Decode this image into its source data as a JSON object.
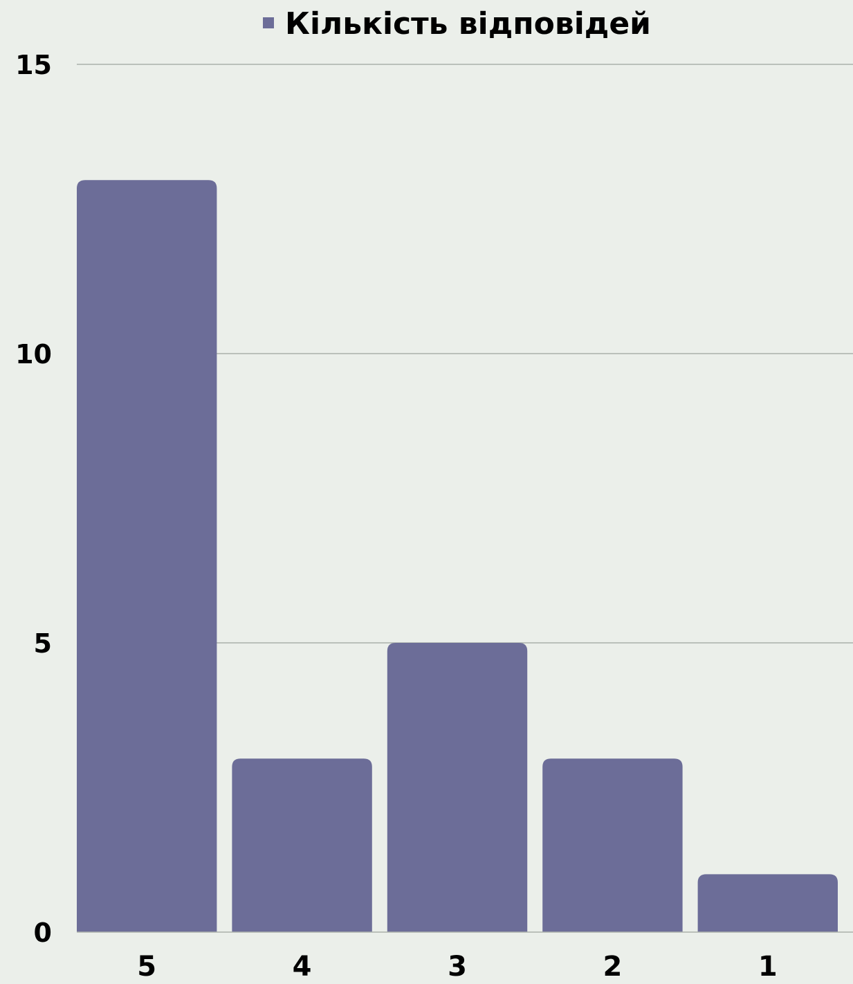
{
  "chart_data": {
    "type": "bar",
    "title": "",
    "xlabel": "",
    "ylabel": "",
    "categories": [
      "5",
      "4",
      "3",
      "2",
      "1"
    ],
    "series": [
      {
        "name": "Кількість відповідей",
        "values": [
          13,
          3,
          5,
          3,
          1
        ],
        "color": "#6c6d98"
      }
    ],
    "ylim": [
      0,
      15
    ],
    "yticks": [
      0,
      5,
      10,
      15
    ],
    "ytick_labels": [
      "0",
      "5",
      "10",
      "15"
    ],
    "grid": true,
    "grid_color": "#a9b0aa",
    "background_color": "#ebefea",
    "legend_position": "top-center"
  }
}
